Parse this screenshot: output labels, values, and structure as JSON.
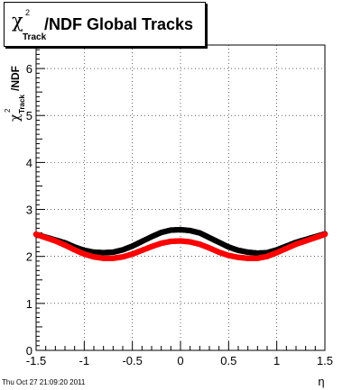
{
  "title": {
    "symbol": "χ",
    "superscript": "2",
    "subscript": "Track",
    "text": "/NDF  Global Tracks"
  },
  "timestamp": "Thu Oct 27 21:09:20 2011",
  "colors": {
    "series_black": "#000000",
    "series_red": "#ff0000"
  },
  "chart_data": {
    "type": "scatter",
    "title": "χ²_Track/NDF  Global Tracks",
    "xlabel": "η",
    "ylabel": "χ²_Track/NDF",
    "xlim": [
      -1.5,
      1.5
    ],
    "ylim": [
      0,
      6.5
    ],
    "x_ticks": [
      "-1.5",
      "-1",
      "-0.5",
      "0",
      "0.5",
      "1",
      "1.5"
    ],
    "y_ticks": [
      "0",
      "1",
      "2",
      "3",
      "4",
      "5",
      "6"
    ],
    "grid": true,
    "series": [
      {
        "color": "#000000",
        "x": [
          -1.5,
          -1.4,
          -1.3,
          -1.2,
          -1.1,
          -1.0,
          -0.9,
          -0.8,
          -0.7,
          -0.6,
          -0.5,
          -0.4,
          -0.3,
          -0.2,
          -0.1,
          0.0,
          0.1,
          0.2,
          0.3,
          0.4,
          0.5,
          0.6,
          0.7,
          0.8,
          0.9,
          1.0,
          1.1,
          1.2,
          1.3,
          1.4,
          1.5
        ],
        "y": [
          2.47,
          2.41,
          2.35,
          2.29,
          2.2,
          2.13,
          2.09,
          2.08,
          2.09,
          2.14,
          2.22,
          2.32,
          2.42,
          2.51,
          2.56,
          2.57,
          2.55,
          2.5,
          2.4,
          2.3,
          2.2,
          2.13,
          2.09,
          2.07,
          2.08,
          2.14,
          2.22,
          2.3,
          2.36,
          2.42,
          2.48
        ]
      },
      {
        "color": "#ff0000",
        "x": [
          -1.5,
          -1.4,
          -1.3,
          -1.2,
          -1.1,
          -1.0,
          -0.9,
          -0.8,
          -0.7,
          -0.6,
          -0.5,
          -0.4,
          -0.3,
          -0.2,
          -0.1,
          0.0,
          0.1,
          0.2,
          0.3,
          0.4,
          0.5,
          0.6,
          0.7,
          0.8,
          0.9,
          1.0,
          1.1,
          1.2,
          1.3,
          1.4,
          1.5
        ],
        "y": [
          2.47,
          2.4,
          2.33,
          2.24,
          2.14,
          2.05,
          1.99,
          1.96,
          1.96,
          1.99,
          2.05,
          2.13,
          2.21,
          2.28,
          2.32,
          2.33,
          2.31,
          2.26,
          2.18,
          2.09,
          2.02,
          1.98,
          1.96,
          1.96,
          2.0,
          2.08,
          2.17,
          2.26,
          2.33,
          2.4,
          2.47
        ]
      }
    ]
  }
}
